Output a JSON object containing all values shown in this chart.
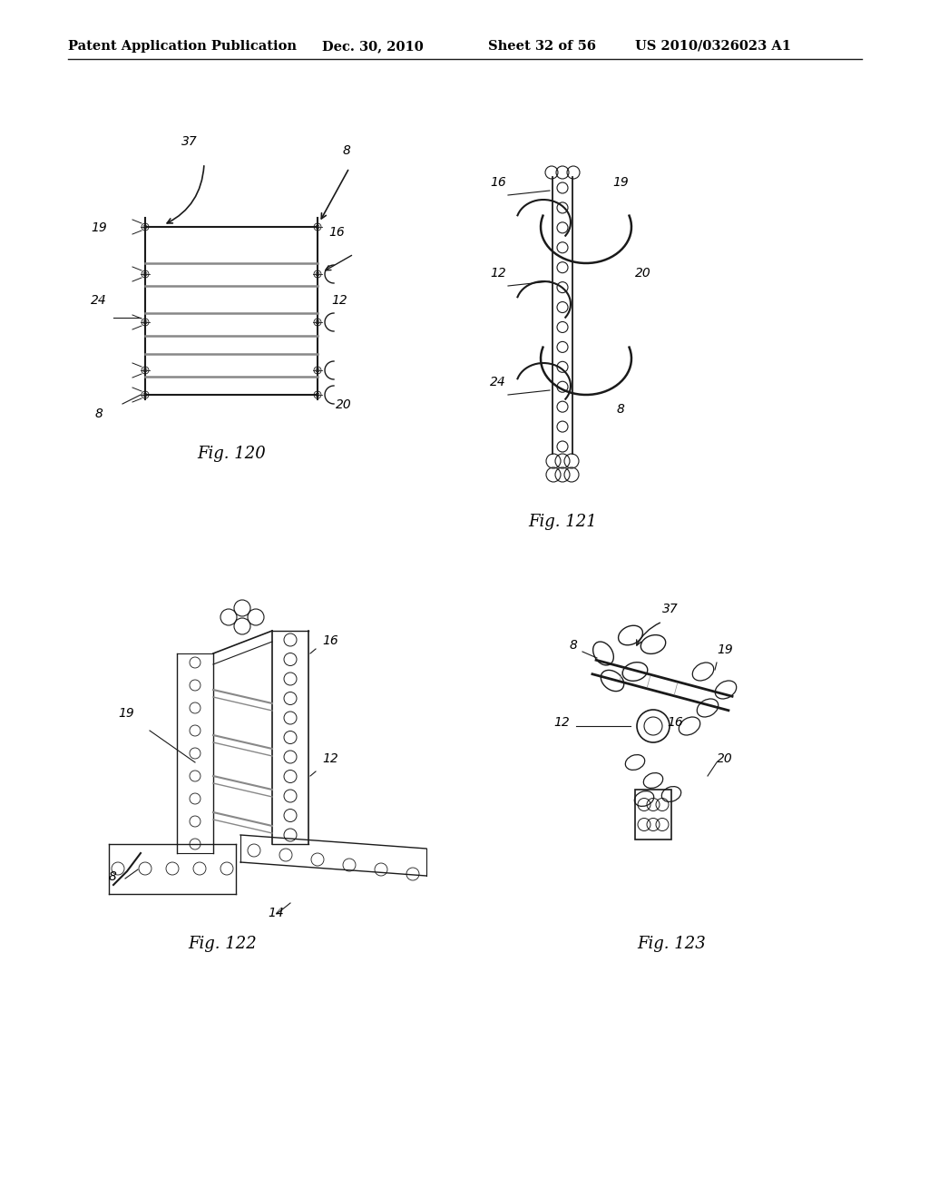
{
  "background_color": "#ffffff",
  "header_text": "Patent Application Publication",
  "header_date": "Dec. 30, 2010",
  "header_sheet": "Sheet 32 of 56",
  "header_patent": "US 2010/0326023 A1",
  "fig_labels": [
    "Fig. 120",
    "Fig. 121",
    "Fig. 122",
    "Fig. 123"
  ],
  "line_color": "#1a1a1a",
  "text_color": "#000000",
  "gray_color": "#888888"
}
